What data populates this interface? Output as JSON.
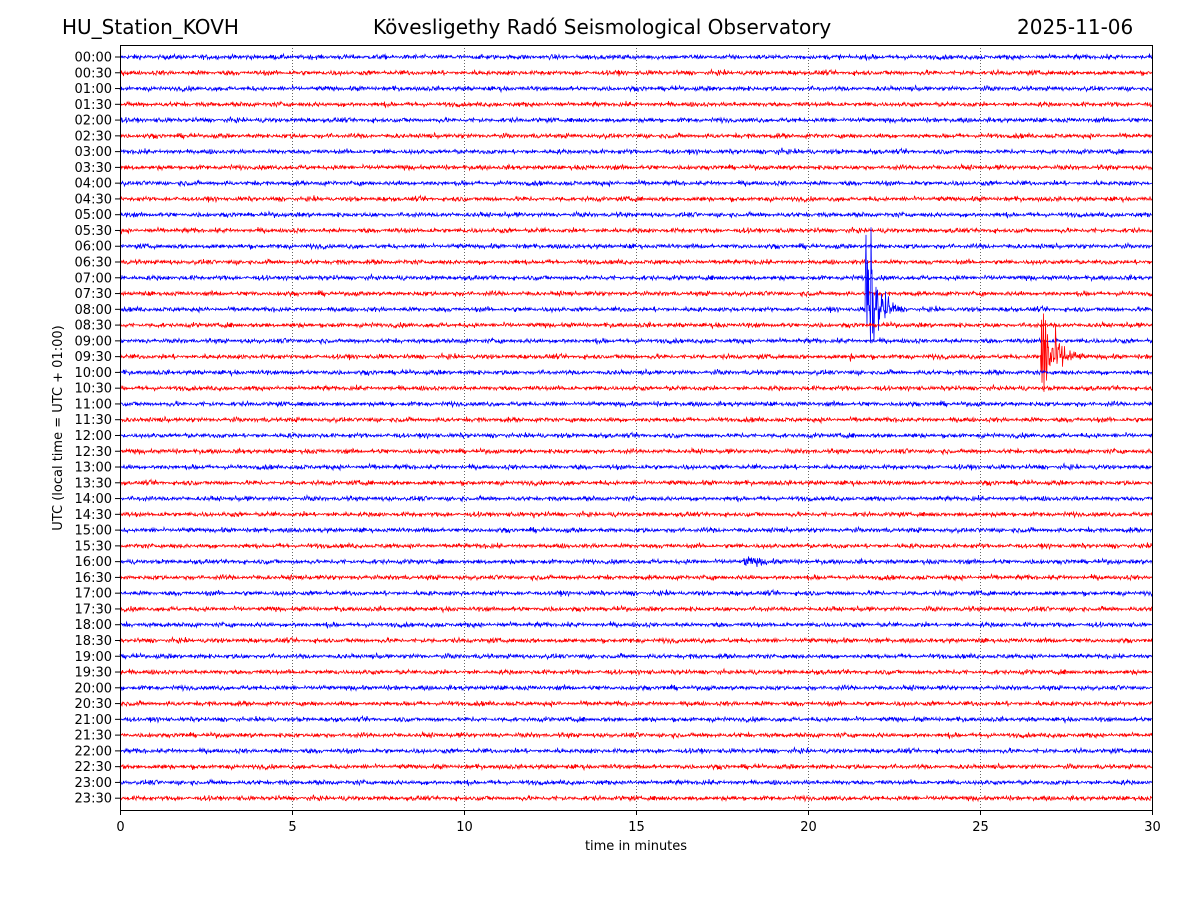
{
  "header": {
    "station": "HU_Station_KOVH",
    "title": "Kövesligethy Radó Seismological Observatory",
    "date": "2025-11-06"
  },
  "chart_data": {
    "type": "line",
    "title": "Kövesligethy Radó Seismological Observatory",
    "xlabel": "time in minutes",
    "ylabel": "UTC (local time = UTC + 01:00)",
    "xlim": [
      0,
      30
    ],
    "xticks": [
      "0",
      "5",
      "10",
      "15",
      "20",
      "25",
      "30"
    ],
    "grid": "vertical dotted at 5-minute intervals",
    "trace_colors": [
      "#0000ff",
      "#ff0000"
    ],
    "rows": [
      "00:00",
      "00:30",
      "01:00",
      "01:30",
      "02:00",
      "02:30",
      "03:00",
      "03:30",
      "04:00",
      "04:30",
      "05:00",
      "05:30",
      "06:00",
      "06:30",
      "07:00",
      "07:30",
      "08:00",
      "08:30",
      "09:00",
      "09:30",
      "10:00",
      "10:30",
      "11:00",
      "11:30",
      "12:00",
      "12:30",
      "13:00",
      "13:30",
      "14:00",
      "14:30",
      "15:00",
      "15:30",
      "16:00",
      "16:30",
      "17:00",
      "17:30",
      "18:00",
      "18:30",
      "19:00",
      "19:30",
      "20:00",
      "20:30",
      "21:00",
      "21:30",
      "22:00",
      "22:30",
      "23:00",
      "23:30"
    ],
    "noise_amplitude": 0.12,
    "events": [
      {
        "row": "08:00",
        "start_min": 21.65,
        "duration_min": 1.2,
        "amp_up": 7.0,
        "amp_down": 4.5
      },
      {
        "row": "09:30",
        "start_min": 26.75,
        "duration_min": 1.6,
        "amp_up": 4.0,
        "amp_down": 3.4
      },
      {
        "row": "09:30",
        "start_min": 21.2,
        "duration_min": 0.5,
        "amp_up": 0.35,
        "amp_down": 0.35
      },
      {
        "row": "09:00",
        "start_min": 26.55,
        "duration_min": 0.3,
        "amp_up": 0.3,
        "amp_down": 0.3
      },
      {
        "row": "16:00",
        "start_min": 18.1,
        "duration_min": 4.3,
        "amp_up": 0.35,
        "amp_down": 0.35
      },
      {
        "row": "11:00",
        "start_min": 5.4,
        "duration_min": 0.5,
        "amp_up": 0.3,
        "amp_down": 0.3
      },
      {
        "row": "14:30",
        "start_min": 12.0,
        "duration_min": 0.5,
        "amp_up": 0.3,
        "amp_down": 0.3
      },
      {
        "row": "03:00",
        "start_min": 19.0,
        "duration_min": 4.0,
        "amp_up": 0.2,
        "amp_down": 0.2
      },
      {
        "row": "11:30",
        "start_min": 27.8,
        "duration_min": 0.6,
        "amp_up": 0.25,
        "amp_down": 0.25
      },
      {
        "row": "16:30",
        "start_min": 5.5,
        "duration_min": 0.4,
        "amp_up": 0.25,
        "amp_down": 0.25
      }
    ]
  }
}
